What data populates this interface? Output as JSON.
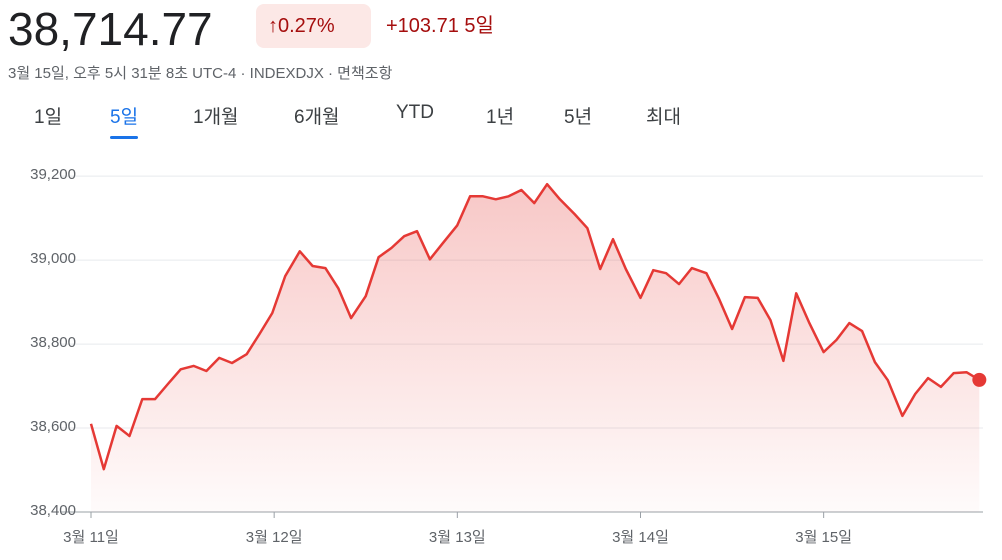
{
  "header": {
    "price": "38,714.77",
    "change_percent": "0.27%",
    "change_value": "+103.71",
    "change_period": "5일",
    "subtitle": "3월 15일, 오후 5시 31분 8초 UTC-4 · INDEXDJX · 면책조항"
  },
  "tabs": {
    "items": [
      "1일",
      "5일",
      "1개월",
      "6개월",
      "YTD",
      "1년",
      "5년",
      "최대"
    ],
    "selected": 1
  },
  "chart_data": {
    "type": "line",
    "grid": true,
    "x": [
      0,
      0.07,
      0.14,
      0.21,
      0.28,
      0.35,
      0.42,
      0.49,
      0.56,
      0.63,
      0.7,
      0.77,
      0.85,
      0.92,
      0.99,
      1.06,
      1.14,
      1.21,
      1.28,
      1.35,
      1.42,
      1.5,
      1.57,
      1.64,
      1.71,
      1.78,
      1.85,
      1.92,
      2.0,
      2.07,
      2.14,
      2.21,
      2.28,
      2.35,
      2.42,
      2.49,
      2.56,
      2.64,
      2.71,
      2.78,
      2.85,
      2.92,
      3.0,
      3.07,
      3.14,
      3.21,
      3.28,
      3.36,
      3.43,
      3.5,
      3.57,
      3.64,
      3.71,
      3.78,
      3.85,
      3.92,
      4.0,
      4.07,
      4.14,
      4.21,
      4.28,
      4.35,
      4.43,
      4.5,
      4.57,
      4.64,
      4.71,
      4.78,
      4.85
    ],
    "series": [
      {
        "name": "INDEXDJX",
        "color": "#e53935",
        "values": [
          38610,
          38502,
          38605,
          38581,
          38669,
          38669,
          38705,
          38740,
          38748,
          38736,
          38767,
          38755,
          38776,
          38824,
          38874,
          38962,
          39021,
          38986,
          38981,
          38933,
          38862,
          38914,
          39007,
          39029,
          39057,
          39069,
          39002,
          39040,
          39083,
          39152,
          39152,
          39145,
          39152,
          39167,
          39136,
          39181,
          39145,
          39110,
          39076,
          38979,
          39050,
          38979,
          38910,
          38976,
          38969,
          38943,
          38981,
          38969,
          38907,
          38836,
          38912,
          38910,
          38857,
          38760,
          38921,
          38852,
          38781,
          38810,
          38850,
          38831,
          38757,
          38714,
          38629,
          38681,
          38719,
          38698,
          38731,
          38733,
          38714.77
        ]
      }
    ],
    "xlim": [
      0,
      4.87
    ],
    "xticks": [
      {
        "value": 0,
        "label": "3월 11일"
      },
      {
        "value": 1,
        "label": "3월 12일"
      },
      {
        "value": 2,
        "label": "3월 13일"
      },
      {
        "value": 3,
        "label": "3월 14일"
      },
      {
        "value": 4,
        "label": "3월 15일"
      }
    ],
    "ylim": [
      38400,
      39260
    ],
    "yticks": [
      {
        "value": 38400,
        "label": "38,400"
      },
      {
        "value": 38600,
        "label": "38,600"
      },
      {
        "value": 38800,
        "label": "38,800"
      },
      {
        "value": 39000,
        "label": "39,000"
      },
      {
        "value": 39200,
        "label": "39,200"
      }
    ]
  }
}
